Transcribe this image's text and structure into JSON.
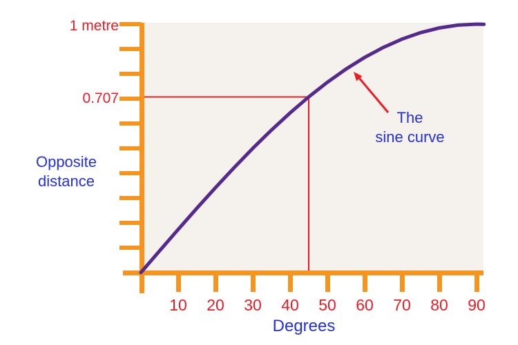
{
  "colors": {
    "axis": "#F7941E",
    "curve": "#542A8C",
    "red": "#EC1B24",
    "blue": "#2431D9",
    "plot_background": "#F5F1EC"
  },
  "y_axis": {
    "top_tick_label": "1 metre",
    "reference_label": "0.707",
    "axis_label_lines": [
      "Opposite",
      "distance"
    ]
  },
  "x_axis": {
    "axis_label": "Degrees",
    "tick_labels": [
      "10",
      "20",
      "30",
      "40",
      "50",
      "60",
      "70",
      "80",
      "90"
    ]
  },
  "annotation": {
    "lines": [
      "The",
      "sine curve"
    ],
    "arrow": "red-arrow-pointing-to-curve"
  },
  "chart_data": {
    "type": "line",
    "title": "The sine curve",
    "xlabel": "Degrees",
    "ylabel": "Opposite distance",
    "x_range": [
      0,
      90
    ],
    "y_range": [
      0,
      1
    ],
    "x_ticks": [
      10,
      20,
      30,
      40,
      50,
      60,
      70,
      80,
      90
    ],
    "y_ticks_interval": 0.1,
    "y_max_label": "1 metre",
    "grid": false,
    "series": [
      {
        "name": "sine curve",
        "color": "#542A8C",
        "x": [
          0,
          5,
          10,
          15,
          20,
          25,
          30,
          35,
          40,
          45,
          50,
          55,
          60,
          65,
          70,
          75,
          80,
          85,
          90,
          92
        ],
        "y": [
          0,
          0.0872,
          0.1736,
          0.2588,
          0.342,
          0.4226,
          0.5,
          0.5736,
          0.6428,
          0.7071,
          0.766,
          0.8192,
          0.866,
          0.9063,
          0.9397,
          0.9659,
          0.9848,
          0.9962,
          1.0,
          0.9994
        ]
      }
    ],
    "reference_point": {
      "degrees": 45,
      "value": 0.707,
      "label": "0.707",
      "lines_color": "#EC1B24"
    }
  }
}
